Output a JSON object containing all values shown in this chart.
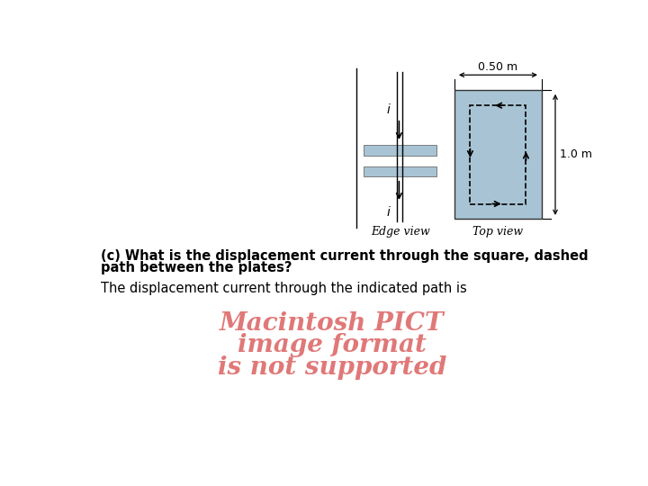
{
  "bg_color": "#ffffff",
  "question_text_line1": "(c) What is the displacement current through the square, dashed",
  "question_text_line2": "path between the plates?",
  "answer_text": "The displacement current through the indicated path is",
  "pict_line1": "Macintosh PICT",
  "pict_line2": "image format",
  "pict_line3": "is not supported",
  "pict_color": "#e07878",
  "plate_color": "#a8c4d4",
  "edge_label": "Edge view",
  "top_label": "Top view",
  "dim_label_horiz": "0.50 m",
  "dim_label_vert": "1.0 m"
}
